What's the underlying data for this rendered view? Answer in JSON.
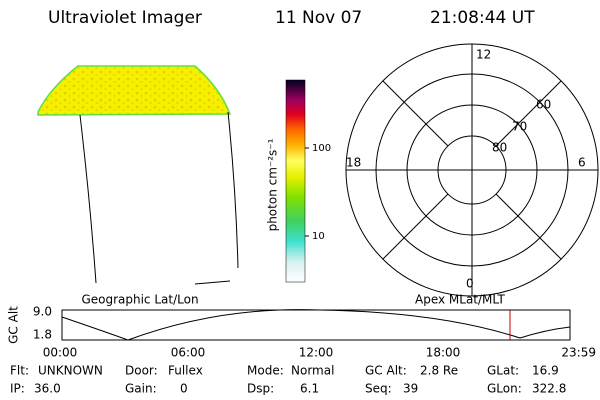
{
  "header": {
    "title": "Ultraviolet Imager",
    "date": "11 Nov 07",
    "time": "21:08:44 UT"
  },
  "colorbar": {
    "label": "photon cm⁻²s⁻¹",
    "ticks": [
      "100",
      "10"
    ]
  },
  "polar": {
    "mlt_labels": [
      "12",
      "18",
      "6",
      "0"
    ],
    "lat_labels": [
      "60",
      "70",
      "80"
    ]
  },
  "timeline": {
    "left_title": "Geographic Lat/Lon",
    "right_title": "Apex MLat/MLT",
    "axis_label": "GC Alt",
    "y_labels": [
      "9.0",
      "1.8"
    ],
    "time_labels": [
      "00:00",
      "06:00",
      "12:00",
      "18:00",
      "23:59"
    ]
  },
  "status": {
    "rows": [
      [
        [
          "Flt:",
          "UNKNOWN"
        ],
        [
          "Door:",
          "Fullex"
        ],
        [
          "Mode:",
          "Normal"
        ],
        [
          "GC Alt:",
          "2.8 Re"
        ],
        [
          "GLat:",
          "16.9"
        ]
      ],
      [
        [
          "IP:",
          "36.0"
        ],
        [
          "Gain:",
          "0"
        ],
        [
          "Dsp:",
          "6.1"
        ],
        [
          "Seq:",
          "39"
        ],
        [
          "GLon:",
          "322.8"
        ]
      ]
    ]
  }
}
